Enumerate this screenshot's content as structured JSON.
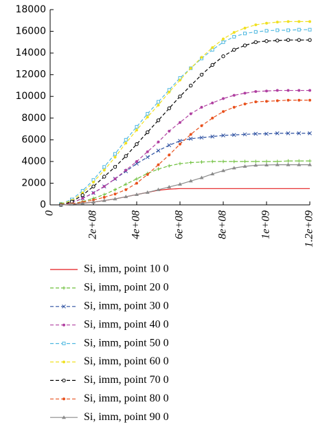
{
  "chart_data": {
    "type": "line",
    "x": [
      50000000,
      100000000,
      150000000,
      200000000,
      250000000,
      300000000,
      350000000,
      400000000,
      450000000,
      500000000,
      550000000,
      600000000,
      650000000,
      700000000,
      750000000,
      800000000,
      850000000,
      900000000,
      950000000,
      1000000000,
      1050000000,
      1100000000,
      1150000000,
      1200000000
    ],
    "xlim": [
      0,
      1200000000
    ],
    "xticks": [
      0,
      {
        "value": 200000000,
        "label": "2e+08"
      },
      {
        "value": 400000000,
        "label": "4e+08"
      },
      {
        "value": 600000000,
        "label": "6e+08"
      },
      {
        "value": 800000000,
        "label": "8e+08"
      },
      {
        "value": 1000000000,
        "label": "1e+09"
      },
      {
        "value": 1200000000,
        "label": "1.2e+09"
      }
    ],
    "ylim": [
      0,
      18000
    ],
    "yticks": [
      0,
      2000,
      4000,
      6000,
      8000,
      10000,
      12000,
      14000,
      16000,
      18000
    ],
    "series": [
      {
        "name": "Si, imm, point 10 0",
        "color": "#e41a1c",
        "marker": "none",
        "dash": false,
        "values": [
          0,
          50,
          150,
          250,
          400,
          550,
          750,
          950,
          1150,
          1350,
          1450,
          1500,
          1500,
          1500,
          1500,
          1500,
          1500,
          1500,
          1500,
          1500,
          1500,
          1500,
          1500,
          1500
        ]
      },
      {
        "name": "Si, imm, point 20 0",
        "color": "#6cbf3a",
        "marker": "plus",
        "dash": true,
        "values": [
          0,
          100,
          300,
          600,
          950,
          1400,
          1900,
          2400,
          2900,
          3300,
          3600,
          3800,
          3900,
          3950,
          4000,
          4000,
          4000,
          4000,
          4000,
          4000,
          4000,
          4050,
          4050,
          4050
        ]
      },
      {
        "name": "Si, imm, point 30 0",
        "color": "#2b4fa0",
        "marker": "cross",
        "dash": true,
        "values": [
          0,
          200,
          600,
          1100,
          1700,
          2400,
          3100,
          3800,
          4400,
          5000,
          5500,
          5900,
          6100,
          6200,
          6300,
          6400,
          6450,
          6500,
          6550,
          6550,
          6600,
          6600,
          6600,
          6600
        ]
      },
      {
        "name": "Si, imm, point 40 0",
        "color": "#b03fa0",
        "marker": "dot",
        "dash": true,
        "values": [
          0,
          200,
          600,
          1100,
          1700,
          2400,
          3200,
          4000,
          4900,
          5800,
          6800,
          7600,
          8400,
          9000,
          9400,
          9800,
          10100,
          10300,
          10450,
          10500,
          10550,
          10550,
          10550,
          10550
        ]
      },
      {
        "name": "Si, imm, point 50 0",
        "color": "#4fb8e0",
        "marker": "square",
        "dash": true,
        "values": [
          100,
          500,
          1300,
          2300,
          3500,
          4700,
          6000,
          7200,
          8400,
          9500,
          10600,
          11700,
          12600,
          13500,
          14300,
          15000,
          15500,
          15800,
          15950,
          16050,
          16100,
          16100,
          16150,
          16150
        ]
      },
      {
        "name": "Si, imm, point 60 0",
        "color": "#f0e020",
        "marker": "dot",
        "dash": true,
        "values": [
          100,
          400,
          1100,
          2100,
          3200,
          4400,
          5700,
          6900,
          8100,
          9200,
          10400,
          11500,
          12600,
          13600,
          14500,
          15300,
          15900,
          16300,
          16600,
          16750,
          16850,
          16900,
          16900,
          16900
        ]
      },
      {
        "name": "Si, imm, point 70 0",
        "color": "#000000",
        "marker": "circle",
        "dash": true,
        "values": [
          0,
          300,
          900,
          1700,
          2600,
          3500,
          4500,
          5600,
          6700,
          7800,
          8900,
          10000,
          11000,
          12000,
          12900,
          13700,
          14300,
          14700,
          15000,
          15100,
          15150,
          15200,
          15200,
          15200
        ]
      },
      {
        "name": "Si, imm, point 80 0",
        "color": "#e8501c",
        "marker": "dot",
        "dash": true,
        "values": [
          0,
          100,
          250,
          450,
          700,
          1000,
          1400,
          2000,
          2800,
          3700,
          4600,
          5600,
          6500,
          7300,
          8000,
          8600,
          9000,
          9300,
          9500,
          9550,
          9600,
          9650,
          9650,
          9650
        ]
      },
      {
        "name": "Si, imm, point 90 0",
        "color": "#8a8a8a",
        "marker": "triangle",
        "dash": false,
        "values": [
          0,
          50,
          150,
          250,
          400,
          550,
          750,
          950,
          1150,
          1400,
          1650,
          1900,
          2200,
          2500,
          2850,
          3150,
          3400,
          3550,
          3650,
          3680,
          3700,
          3700,
          3700,
          3700
        ]
      }
    ]
  }
}
